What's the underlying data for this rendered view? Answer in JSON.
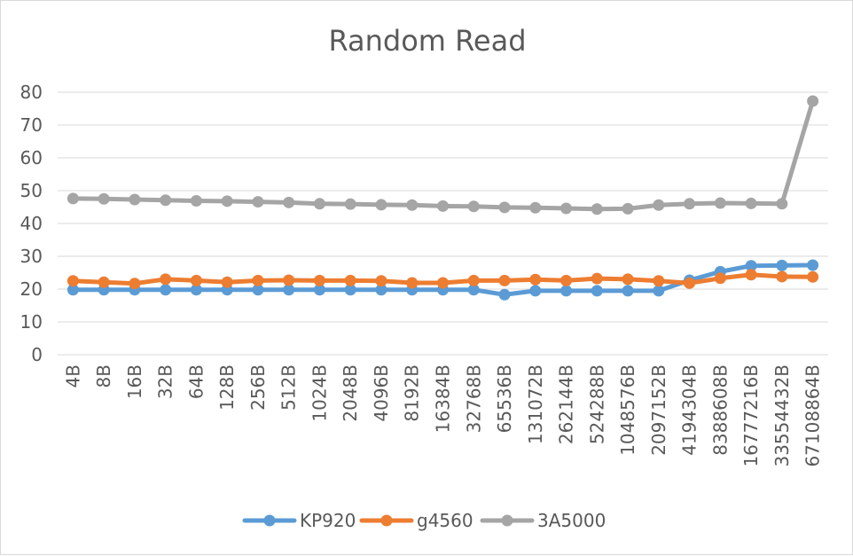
{
  "chart_data": {
    "type": "line",
    "title": "Random Read",
    "xlabel": "",
    "ylabel": "",
    "ylim": [
      0,
      80
    ],
    "yticks": [
      0,
      10,
      20,
      30,
      40,
      50,
      60,
      70,
      80
    ],
    "grid": true,
    "legend": "bottom",
    "categories": [
      "4B",
      "8B",
      "16B",
      "32B",
      "64B",
      "128B",
      "256B",
      "512B",
      "1024B",
      "2048B",
      "4096B",
      "8192B",
      "16384B",
      "32768B",
      "65536B",
      "131072B",
      "262144B",
      "524288B",
      "1048576B",
      "2097152B",
      "4194304B",
      "8388608B",
      "16777216B",
      "33554432B",
      "67108864B"
    ],
    "series": [
      {
        "name": "KP920",
        "color": "#5b9bd5",
        "values": [
          19.8,
          19.8,
          19.8,
          19.8,
          19.8,
          19.8,
          19.8,
          19.8,
          19.8,
          19.8,
          19.8,
          19.8,
          19.8,
          19.8,
          18.3,
          19.5,
          19.5,
          19.5,
          19.5,
          19.5,
          22.7,
          25.3,
          27.1,
          27.2,
          27.3
        ]
      },
      {
        "name": "g4560",
        "color": "#ed7d31",
        "values": [
          22.5,
          22.1,
          21.7,
          23.0,
          22.6,
          22.1,
          22.6,
          22.7,
          22.6,
          22.6,
          22.5,
          21.9,
          21.9,
          22.6,
          22.6,
          22.9,
          22.6,
          23.2,
          23.0,
          22.5,
          21.8,
          23.3,
          24.4,
          23.8,
          23.7
        ]
      },
      {
        "name": "3A5000",
        "color": "#a5a5a5",
        "values": [
          47.6,
          47.5,
          47.3,
          47.1,
          46.9,
          46.8,
          46.6,
          46.4,
          46.0,
          45.9,
          45.7,
          45.6,
          45.3,
          45.2,
          44.9,
          44.8,
          44.6,
          44.4,
          44.5,
          45.6,
          46.0,
          46.2,
          46.1,
          46.0,
          77.3
        ]
      }
    ]
  }
}
